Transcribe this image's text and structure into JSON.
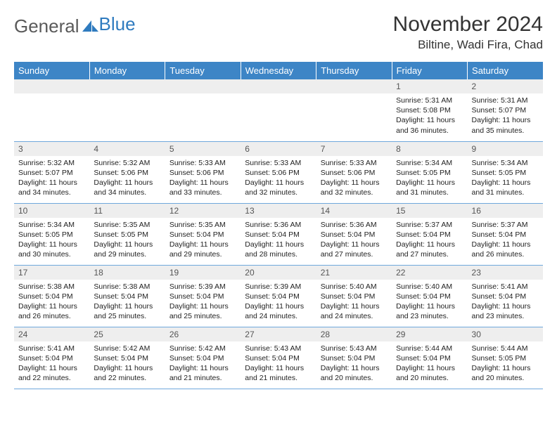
{
  "logo": {
    "text1": "General",
    "text2": "Blue"
  },
  "title": "November 2024",
  "location": "Biltine, Wadi Fira, Chad",
  "colors": {
    "header_bg": "#3d85c6",
    "header_text": "#ffffff",
    "daynum_bg": "#eeeeee",
    "row_border": "#6fa8dc",
    "title_color": "#333333",
    "body_text": "#222222",
    "logo_gray": "#5a5a5a",
    "logo_blue": "#2f7bbf"
  },
  "weekdays": [
    "Sunday",
    "Monday",
    "Tuesday",
    "Wednesday",
    "Thursday",
    "Friday",
    "Saturday"
  ],
  "weeks": [
    [
      null,
      null,
      null,
      null,
      null,
      {
        "n": "1",
        "sunrise": "5:31 AM",
        "sunset": "5:08 PM",
        "daylight": "11 hours and 36 minutes."
      },
      {
        "n": "2",
        "sunrise": "5:31 AM",
        "sunset": "5:07 PM",
        "daylight": "11 hours and 35 minutes."
      }
    ],
    [
      {
        "n": "3",
        "sunrise": "5:32 AM",
        "sunset": "5:07 PM",
        "daylight": "11 hours and 34 minutes."
      },
      {
        "n": "4",
        "sunrise": "5:32 AM",
        "sunset": "5:06 PM",
        "daylight": "11 hours and 34 minutes."
      },
      {
        "n": "5",
        "sunrise": "5:33 AM",
        "sunset": "5:06 PM",
        "daylight": "11 hours and 33 minutes."
      },
      {
        "n": "6",
        "sunrise": "5:33 AM",
        "sunset": "5:06 PM",
        "daylight": "11 hours and 32 minutes."
      },
      {
        "n": "7",
        "sunrise": "5:33 AM",
        "sunset": "5:06 PM",
        "daylight": "11 hours and 32 minutes."
      },
      {
        "n": "8",
        "sunrise": "5:34 AM",
        "sunset": "5:05 PM",
        "daylight": "11 hours and 31 minutes."
      },
      {
        "n": "9",
        "sunrise": "5:34 AM",
        "sunset": "5:05 PM",
        "daylight": "11 hours and 31 minutes."
      }
    ],
    [
      {
        "n": "10",
        "sunrise": "5:34 AM",
        "sunset": "5:05 PM",
        "daylight": "11 hours and 30 minutes."
      },
      {
        "n": "11",
        "sunrise": "5:35 AM",
        "sunset": "5:05 PM",
        "daylight": "11 hours and 29 minutes."
      },
      {
        "n": "12",
        "sunrise": "5:35 AM",
        "sunset": "5:04 PM",
        "daylight": "11 hours and 29 minutes."
      },
      {
        "n": "13",
        "sunrise": "5:36 AM",
        "sunset": "5:04 PM",
        "daylight": "11 hours and 28 minutes."
      },
      {
        "n": "14",
        "sunrise": "5:36 AM",
        "sunset": "5:04 PM",
        "daylight": "11 hours and 27 minutes."
      },
      {
        "n": "15",
        "sunrise": "5:37 AM",
        "sunset": "5:04 PM",
        "daylight": "11 hours and 27 minutes."
      },
      {
        "n": "16",
        "sunrise": "5:37 AM",
        "sunset": "5:04 PM",
        "daylight": "11 hours and 26 minutes."
      }
    ],
    [
      {
        "n": "17",
        "sunrise": "5:38 AM",
        "sunset": "5:04 PM",
        "daylight": "11 hours and 26 minutes."
      },
      {
        "n": "18",
        "sunrise": "5:38 AM",
        "sunset": "5:04 PM",
        "daylight": "11 hours and 25 minutes."
      },
      {
        "n": "19",
        "sunrise": "5:39 AM",
        "sunset": "5:04 PM",
        "daylight": "11 hours and 25 minutes."
      },
      {
        "n": "20",
        "sunrise": "5:39 AM",
        "sunset": "5:04 PM",
        "daylight": "11 hours and 24 minutes."
      },
      {
        "n": "21",
        "sunrise": "5:40 AM",
        "sunset": "5:04 PM",
        "daylight": "11 hours and 24 minutes."
      },
      {
        "n": "22",
        "sunrise": "5:40 AM",
        "sunset": "5:04 PM",
        "daylight": "11 hours and 23 minutes."
      },
      {
        "n": "23",
        "sunrise": "5:41 AM",
        "sunset": "5:04 PM",
        "daylight": "11 hours and 23 minutes."
      }
    ],
    [
      {
        "n": "24",
        "sunrise": "5:41 AM",
        "sunset": "5:04 PM",
        "daylight": "11 hours and 22 minutes."
      },
      {
        "n": "25",
        "sunrise": "5:42 AM",
        "sunset": "5:04 PM",
        "daylight": "11 hours and 22 minutes."
      },
      {
        "n": "26",
        "sunrise": "5:42 AM",
        "sunset": "5:04 PM",
        "daylight": "11 hours and 21 minutes."
      },
      {
        "n": "27",
        "sunrise": "5:43 AM",
        "sunset": "5:04 PM",
        "daylight": "11 hours and 21 minutes."
      },
      {
        "n": "28",
        "sunrise": "5:43 AM",
        "sunset": "5:04 PM",
        "daylight": "11 hours and 20 minutes."
      },
      {
        "n": "29",
        "sunrise": "5:44 AM",
        "sunset": "5:04 PM",
        "daylight": "11 hours and 20 minutes."
      },
      {
        "n": "30",
        "sunrise": "5:44 AM",
        "sunset": "5:05 PM",
        "daylight": "11 hours and 20 minutes."
      }
    ]
  ],
  "labels": {
    "sunrise": "Sunrise:",
    "sunset": "Sunset:",
    "daylight": "Daylight:"
  }
}
